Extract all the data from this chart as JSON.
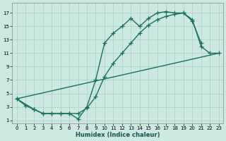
{
  "background_color": "#cce8e0",
  "grid_color": "#aaccC4",
  "line_color": "#1a7060",
  "line_width": 1.0,
  "marker": "+",
  "markersize": 4,
  "xlabel": "Humidex (Indice chaleur)",
  "xlim": [
    -0.5,
    23.5
  ],
  "ylim": [
    0.5,
    18.5
  ],
  "xticks": [
    0,
    1,
    2,
    3,
    4,
    5,
    6,
    7,
    8,
    9,
    10,
    11,
    12,
    13,
    14,
    15,
    16,
    17,
    18,
    19,
    20,
    21,
    22,
    23
  ],
  "yticks": [
    1,
    3,
    5,
    7,
    9,
    11,
    13,
    15,
    17
  ],
  "curve1": {
    "x": [
      0,
      1,
      2,
      3,
      4,
      5,
      6,
      7,
      8,
      9,
      10,
      11,
      12,
      13,
      14,
      15,
      16,
      17,
      18,
      19,
      20,
      21
    ],
    "y": [
      4.2,
      3.2,
      2.6,
      2.0,
      2.0,
      2.0,
      2.0,
      1.2,
      3.0,
      7.0,
      12.5,
      14.0,
      15.0,
      16.2,
      15.0,
      16.2,
      17.0,
      17.2,
      17.0,
      17.0,
      15.8,
      12.5
    ]
  },
  "curve2": {
    "x": [
      0,
      2,
      3,
      4,
      5,
      6,
      7,
      8,
      9,
      10,
      11,
      12,
      13,
      14,
      15,
      16,
      17,
      18,
      19,
      20,
      21,
      22,
      23
    ],
    "y": [
      4.2,
      2.6,
      2.0,
      2.0,
      2.0,
      2.0,
      2.0,
      2.8,
      4.5,
      7.5,
      9.5,
      11.0,
      12.5,
      14.0,
      15.2,
      16.0,
      16.5,
      16.8,
      17.0,
      16.0,
      12.0,
      11.0,
      11.0
    ]
  },
  "line3": {
    "x": [
      0,
      23
    ],
    "y": [
      4.2,
      11.0
    ]
  }
}
